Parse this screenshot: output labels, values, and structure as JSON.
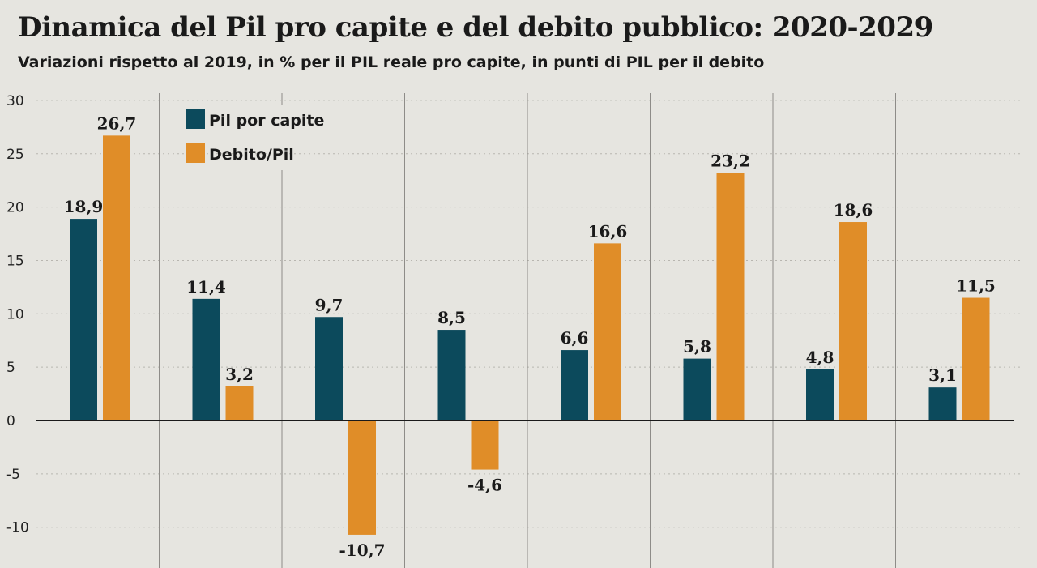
{
  "chart_data": {
    "type": "bar",
    "title": "Dinamica del Pil pro capite e del debito pubblico: 2020-2029",
    "subtitle": "Variazioni rispetto al 2019, in % per il PIL reale pro capite, in punti di PIL per il debito",
    "xlabel": "",
    "ylabel": "",
    "ylim": [
      -13,
      30
    ],
    "yticks": [
      30,
      25,
      20,
      15,
      10,
      5,
      0,
      -5,
      -10
    ],
    "grid": true,
    "legend_position": "top-left",
    "series": [
      {
        "name": "Pil por capite",
        "color": "#0c4a5c",
        "values": [
          18.9,
          11.4,
          9.7,
          8.5,
          6.6,
          5.8,
          4.8,
          3.1
        ],
        "labels": [
          "18,9",
          "11,4",
          "9,7",
          "8,5",
          "6,6",
          "5,8",
          "4,8",
          "3,1"
        ]
      },
      {
        "name": "Debito/Pil",
        "color": "#e08d28",
        "values": [
          26.7,
          3.2,
          -10.7,
          -4.6,
          16.6,
          23.2,
          18.6,
          11.5
        ],
        "labels": [
          "26,7",
          "3,2",
          "-10,7",
          "-4,6",
          "16,6",
          "23,2",
          "18,6",
          "11,5"
        ]
      }
    ]
  }
}
